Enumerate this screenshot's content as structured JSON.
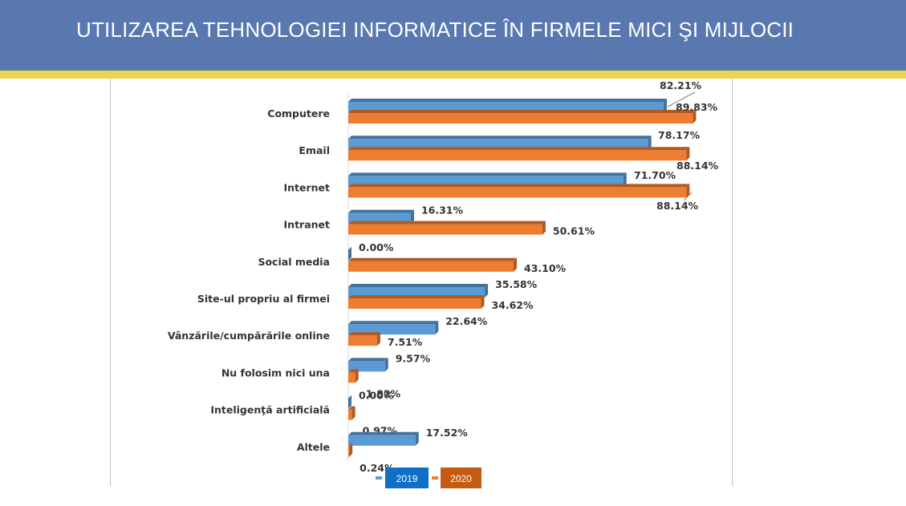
{
  "header": {
    "title": "UTILIZAREA TEHNOLOGIEI INFORMATICE ÎN FIRMELE MICI ŞI MIJLOCII",
    "background": "#5a78b0",
    "stripe": "#e8d44d"
  },
  "chart_data": {
    "type": "bar",
    "orientation": "horizontal",
    "style": "3d",
    "title": "",
    "xlabel": "",
    "ylabel": "",
    "xlim": [
      0,
      100
    ],
    "grid": false,
    "legend_position": "bottom",
    "categories": [
      "Computere",
      "Email",
      "Internet",
      "Intranet",
      "Social media",
      "Site-ul propriu al firmei",
      "Vânzările/cumpărările online",
      "Nu folosim nici una",
      "Inteligenţă artificială",
      "Altele"
    ],
    "series": [
      {
        "name": "2019",
        "color": "#5b9bd5",
        "values": [
          82.21,
          78.17,
          71.7,
          16.31,
          0.0,
          35.58,
          22.64,
          9.57,
          0.0,
          17.52
        ],
        "labels": [
          "82.21%",
          "78.17%",
          "71.70%",
          "16.31%",
          "0.00%",
          "35.58%",
          "22.64%",
          "9.57%",
          "0.00%",
          "17.52%"
        ]
      },
      {
        "name": "2020",
        "color": "#ed7d31",
        "values": [
          89.83,
          88.14,
          88.14,
          50.61,
          43.1,
          34.62,
          7.51,
          1.82,
          0.97,
          0.24
        ],
        "labels": [
          "89.83%",
          "88.14%",
          "88.14%",
          "50.61%",
          "43.10%",
          "34.62%",
          "7.51%",
          "1.82%",
          "0.97%",
          "0.24%"
        ]
      }
    ]
  }
}
